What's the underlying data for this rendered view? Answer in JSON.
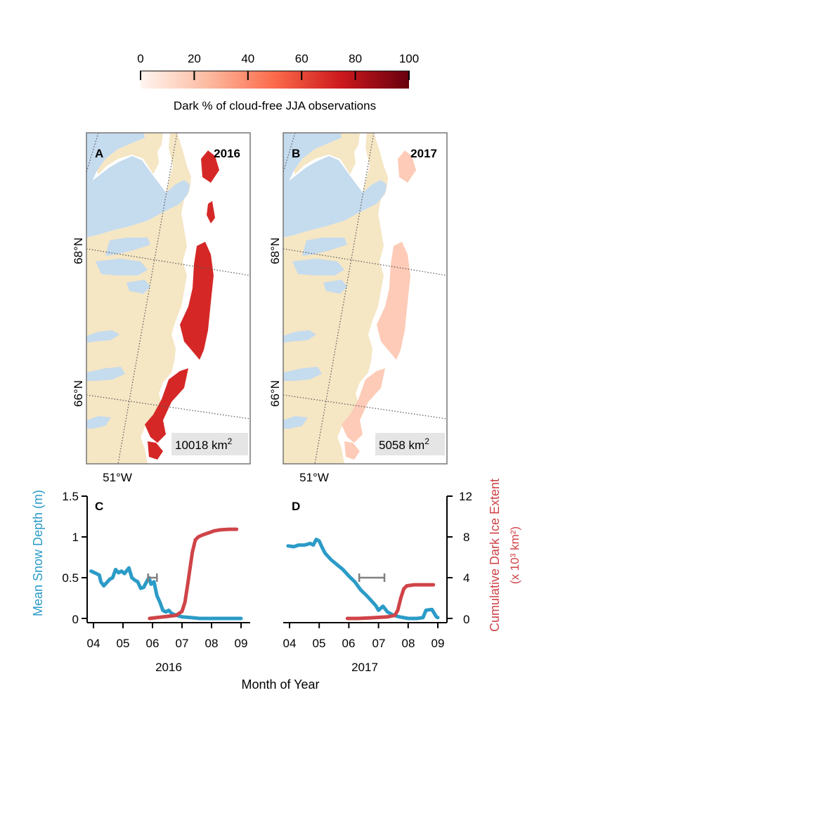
{
  "colorbar": {
    "ticks": [
      "0",
      "20",
      "40",
      "60",
      "80",
      "100"
    ],
    "label": "Dark % of cloud-free JJA observations",
    "colors": [
      "#fff5f0",
      "#fcbba1",
      "#fb6a4a",
      "#cb181d",
      "#67000d"
    ]
  },
  "maps": [
    {
      "panel": "A",
      "year": "2016",
      "area_value": "10018 km",
      "area_sup": "2",
      "lat_labels": [
        "68°N",
        "66°N"
      ],
      "lon_label": "51°W",
      "dark_level": 0.7
    },
    {
      "panel": "B",
      "year": "2017",
      "area_value": "5058 km",
      "area_sup": "2",
      "lat_labels": [
        "68°N",
        "66°N"
      ],
      "lon_label": "51°W",
      "dark_level": 0.18
    }
  ],
  "colors": {
    "ocean": "#c5dbee",
    "land": "#f5e6c4",
    "snow_line": "#2b9bc7",
    "dark_ice_line": "#cf4448",
    "timing_bar": "#808080"
  },
  "chart_data": [
    {
      "type": "line",
      "panel": "C",
      "year": "2016",
      "x_ticks": [
        "04",
        "05",
        "06",
        "07",
        "08",
        "09"
      ],
      "y_left_ticks": [
        "0",
        "0.5",
        "1",
        "1.5"
      ],
      "y_right_ticks": [
        "0",
        "4",
        "8",
        "12"
      ],
      "ylabel_left": "Mean Snow Depth (m)",
      "ylabel_right": "Cumulative Dark Ice Extent",
      "ylabel_right_units": "(x 10³ km²)",
      "xlabel": "Month of Year",
      "xlim": [
        3.75,
        9.15
      ],
      "ylim_left": [
        -0.05,
        1.5
      ],
      "ylim_right": [
        -0.4,
        12
      ],
      "series": [
        {
          "name": "Mean Snow Depth",
          "axis": "left",
          "x": [
            3.92,
            4.1,
            4.2,
            4.25,
            4.35,
            4.45,
            4.55,
            4.65,
            4.75,
            4.85,
            4.95,
            5.05,
            5.2,
            5.3,
            5.4,
            5.5,
            5.6,
            5.7,
            5.8,
            5.88,
            5.95,
            6.05,
            6.15,
            6.25,
            6.35,
            6.45,
            6.55,
            6.65,
            6.8,
            7.0,
            7.3,
            7.6,
            8.0,
            8.5,
            9.0
          ],
          "y": [
            0.58,
            0.55,
            0.53,
            0.45,
            0.4,
            0.44,
            0.48,
            0.5,
            0.6,
            0.56,
            0.58,
            0.55,
            0.62,
            0.5,
            0.47,
            0.45,
            0.37,
            0.38,
            0.45,
            0.5,
            0.42,
            0.45,
            0.28,
            0.2,
            0.1,
            0.08,
            0.1,
            0.06,
            0.04,
            0.02,
            0.01,
            0.0,
            0.0,
            0.0,
            0.0
          ]
        },
        {
          "name": "Cumulative Dark Ice Extent",
          "axis": "right",
          "x": [
            5.9,
            6.2,
            6.5,
            6.8,
            7.0,
            7.1,
            7.2,
            7.3,
            7.35,
            7.45,
            7.55,
            7.7,
            7.9,
            8.1,
            8.3,
            8.6,
            8.85
          ],
          "y": [
            0.0,
            0.1,
            0.2,
            0.3,
            0.7,
            1.6,
            3.5,
            5.5,
            6.5,
            7.7,
            8.0,
            8.2,
            8.4,
            8.6,
            8.7,
            8.75,
            8.75
          ]
        }
      ],
      "timing_bar": {
        "center": 5.9,
        "low": 5.85,
        "high": 6.15,
        "y": 0.5
      }
    },
    {
      "type": "line",
      "panel": "D",
      "year": "2017",
      "x_ticks": [
        "04",
        "05",
        "06",
        "07",
        "08",
        "09"
      ],
      "xlim": [
        3.75,
        9.15
      ],
      "ylim_left": [
        -0.05,
        1.5
      ],
      "ylim_right": [
        -0.4,
        12
      ],
      "series": [
        {
          "name": "Mean Snow Depth",
          "axis": "left",
          "x": [
            3.95,
            4.15,
            4.3,
            4.5,
            4.7,
            4.8,
            4.9,
            5.0,
            5.1,
            5.2,
            5.4,
            5.6,
            5.8,
            6.0,
            6.2,
            6.4,
            6.6,
            6.8,
            6.9,
            7.0,
            7.15,
            7.3,
            7.5,
            7.7,
            8.0,
            8.3,
            8.5,
            8.6,
            8.8,
            8.95,
            9.0
          ],
          "y": [
            0.89,
            0.88,
            0.9,
            0.9,
            0.92,
            0.9,
            0.97,
            0.95,
            0.87,
            0.8,
            0.72,
            0.66,
            0.6,
            0.52,
            0.45,
            0.35,
            0.28,
            0.2,
            0.16,
            0.1,
            0.15,
            0.08,
            0.04,
            0.02,
            0.0,
            0.0,
            0.01,
            0.1,
            0.11,
            0.02,
            0.01
          ]
        },
        {
          "name": "Cumulative Dark Ice Extent",
          "axis": "right",
          "x": [
            5.95,
            6.3,
            6.7,
            7.0,
            7.3,
            7.55,
            7.65,
            7.75,
            7.85,
            7.95,
            8.2,
            8.5,
            8.85
          ],
          "y": [
            0.0,
            0.0,
            0.05,
            0.1,
            0.15,
            0.3,
            0.8,
            2.0,
            2.9,
            3.2,
            3.3,
            3.3,
            3.3
          ]
        }
      ],
      "timing_bar": {
        "center": 6.5,
        "low": 6.35,
        "high": 7.2,
        "y": 0.5
      }
    }
  ]
}
